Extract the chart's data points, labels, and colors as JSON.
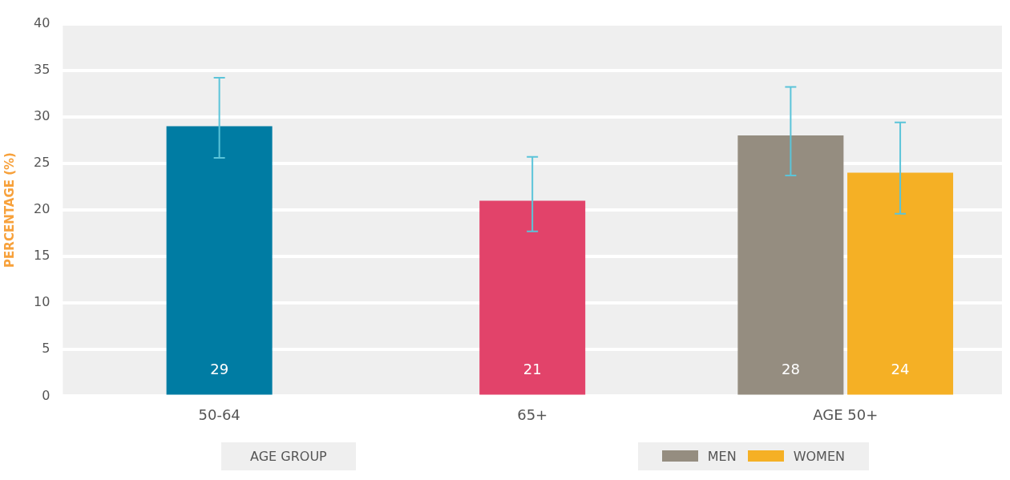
{
  "chart_data": {
    "type": "bar",
    "categories": [
      "50-64",
      "65+",
      "AGE 50+"
    ],
    "ylabel": "PERCENTAGE (%)",
    "xlabel": "AGE GROUP",
    "ylim": [
      0,
      40
    ],
    "yticks": [
      0,
      5,
      10,
      15,
      20,
      25,
      30,
      35,
      40
    ],
    "grid": "y",
    "legend": "bottom",
    "series": [
      {
        "colors": [
          "#007ca3",
          "#e2436a",
          null
        ],
        "values": [
          29,
          21,
          null
        ],
        "errors": [
          [
            25.6,
            34.2
          ],
          [
            17.7,
            25.7
          ],
          null
        ],
        "value_labels": [
          "29",
          "21",
          null
        ]
      },
      {
        "name": "MEN",
        "color": "#958d80",
        "values": [
          null,
          null,
          28
        ],
        "errors": [
          null,
          null,
          [
            23.7,
            33.2
          ]
        ],
        "value_labels": [
          null,
          null,
          "28"
        ]
      },
      {
        "name": "WOMEN",
        "color": "#f5b025",
        "values": [
          null,
          null,
          24
        ],
        "errors": [
          null,
          null,
          [
            19.6,
            29.4
          ]
        ],
        "value_labels": [
          null,
          null,
          "24"
        ]
      }
    ]
  }
}
